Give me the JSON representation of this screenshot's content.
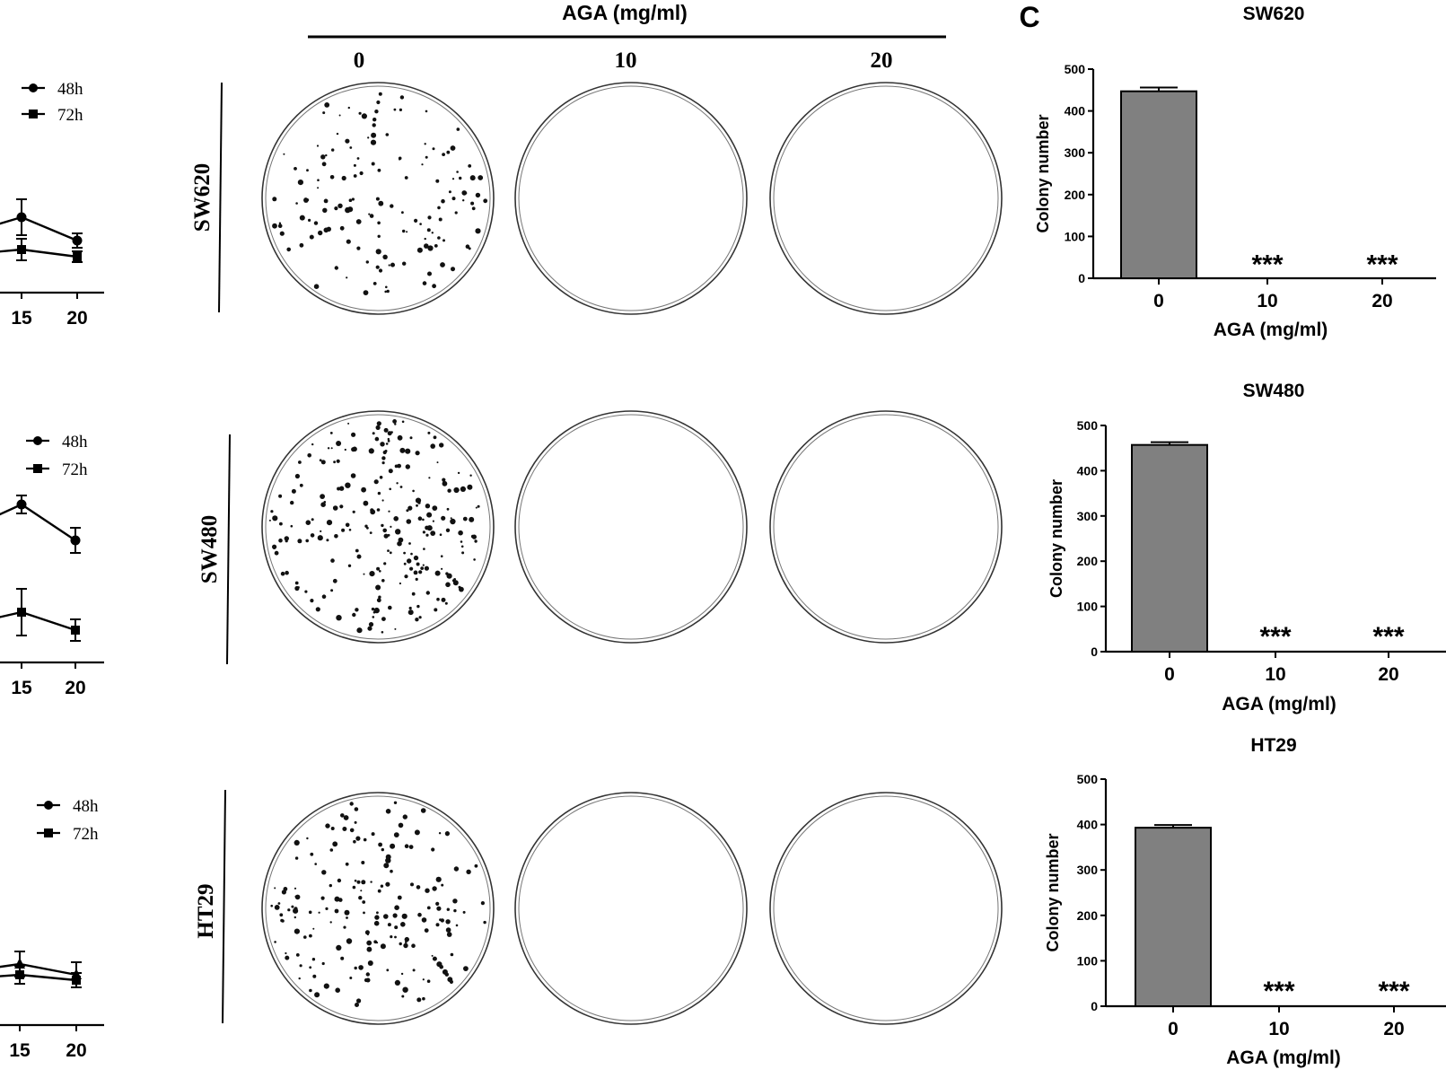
{
  "panel_c_label": "C",
  "plates": {
    "header": "AGA (mg/ml)",
    "columns": [
      "0",
      "10",
      "20"
    ],
    "rows": [
      "SW620",
      "SW480",
      "HT29"
    ]
  },
  "colors": {
    "bar": "#808080",
    "axis": "#000000",
    "plate": "#333333"
  },
  "chart_data": [
    {
      "id": "left-sw620",
      "type": "line",
      "x": [
        15,
        20
      ],
      "ticks": [
        "15",
        "20"
      ],
      "series": [
        {
          "name": "48h",
          "marker": "circle",
          "values": [
            0.42,
            0.29
          ],
          "err": [
            0.1,
            0.04
          ]
        },
        {
          "name": "72h",
          "marker": "square",
          "values": [
            0.24,
            0.2
          ],
          "err": [
            0.06,
            0.03
          ]
        }
      ],
      "legend": [
        "48h",
        "72h"
      ]
    },
    {
      "id": "left-sw480",
      "type": "line",
      "x": [
        15,
        20
      ],
      "ticks": [
        "15",
        "20"
      ],
      "series": [
        {
          "name": "48h",
          "marker": "circle",
          "values": [
            0.88,
            0.68
          ],
          "err": [
            0.05,
            0.07
          ]
        },
        {
          "name": "72h",
          "marker": "square",
          "values": [
            0.28,
            0.18
          ],
          "err": [
            0.13,
            0.06
          ]
        }
      ],
      "legend": [
        "48h",
        "72h"
      ]
    },
    {
      "id": "left-ht29",
      "type": "line",
      "x": [
        15,
        20
      ],
      "ticks": [
        "15",
        "20"
      ],
      "series": [
        {
          "name": "48h",
          "marker": "triangle",
          "values": [
            0.34,
            0.28
          ],
          "err": [
            0.07,
            0.07
          ]
        },
        {
          "name": "72h",
          "marker": "square",
          "values": [
            0.28,
            0.25
          ],
          "err": [
            0.05,
            0.04
          ]
        }
      ],
      "legend": [
        "48h",
        "72h"
      ]
    },
    {
      "id": "bar-sw620",
      "type": "bar",
      "title": "SW620",
      "categories": [
        "0",
        "10",
        "20"
      ],
      "values": [
        447,
        0,
        0
      ],
      "errors": [
        9,
        0,
        0
      ],
      "significance": [
        "",
        "***",
        "***"
      ],
      "xlabel": "AGA (mg/ml)",
      "ylabel": "Colony number",
      "ylim": [
        0,
        500
      ],
      "yticks": [
        0,
        100,
        200,
        300,
        400,
        500
      ]
    },
    {
      "id": "bar-sw480",
      "type": "bar",
      "title": "SW480",
      "categories": [
        "0",
        "10",
        "20"
      ],
      "values": [
        457,
        0,
        0
      ],
      "errors": [
        6,
        0,
        0
      ],
      "significance": [
        "",
        "***",
        "***"
      ],
      "xlabel": "AGA (mg/ml)",
      "ylabel": "Colony number",
      "ylim": [
        0,
        500
      ],
      "yticks": [
        0,
        100,
        200,
        300,
        400,
        500
      ]
    },
    {
      "id": "bar-ht29",
      "type": "bar",
      "title": "HT29",
      "categories": [
        "0",
        "10",
        "20"
      ],
      "values": [
        393,
        0,
        0
      ],
      "errors": [
        6,
        0,
        0
      ],
      "significance": [
        "",
        "***",
        "***"
      ],
      "xlabel": "AGA (mg/ml)",
      "ylabel": "Colony number",
      "ylim": [
        0,
        500
      ],
      "yticks": [
        0,
        100,
        200,
        300,
        400,
        500
      ]
    }
  ]
}
